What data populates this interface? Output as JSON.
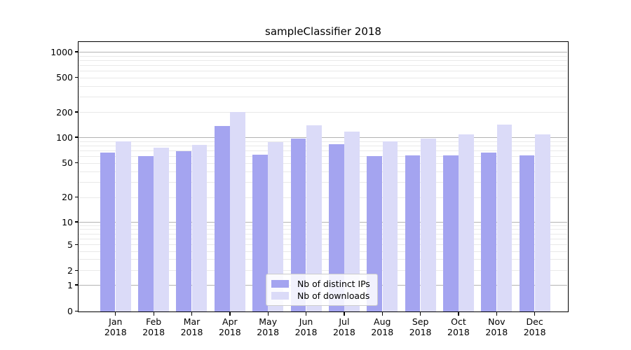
{
  "chart_data": {
    "type": "bar",
    "title": "sampleClassifier 2018",
    "categories": [
      "Jan 2018",
      "Feb 2018",
      "Mar 2018",
      "Apr 2018",
      "May 2018",
      "Jun 2018",
      "Jul 2018",
      "Aug 2018",
      "Sep 2018",
      "Oct 2018",
      "Nov 2018",
      "Dec 2018"
    ],
    "series": [
      {
        "name": "Nb of distinct IPs",
        "color": "#a4a4f0",
        "values": [
          66,
          60,
          68,
          136,
          62,
          97,
          83,
          60,
          61,
          61,
          66,
          61
        ]
      },
      {
        "name": "Nb of downloads",
        "color": "#dbdbf8",
        "values": [
          90,
          76,
          82,
          199,
          88,
          140,
          117,
          89,
          97,
          108,
          141,
          107
        ]
      }
    ],
    "xlabel": "",
    "ylabel": "",
    "y_scale": "symlog",
    "y_ticks": [
      0,
      1,
      2,
      5,
      10,
      20,
      50,
      100,
      200,
      500,
      1000
    ],
    "ylim": [
      0,
      1300
    ],
    "grid": true,
    "legend_position": "lower center",
    "colors": {
      "major_grid": "#b3b3b3",
      "minor_grid": "#e9e9e9",
      "axis": "#000000",
      "background": "#ffffff"
    }
  }
}
